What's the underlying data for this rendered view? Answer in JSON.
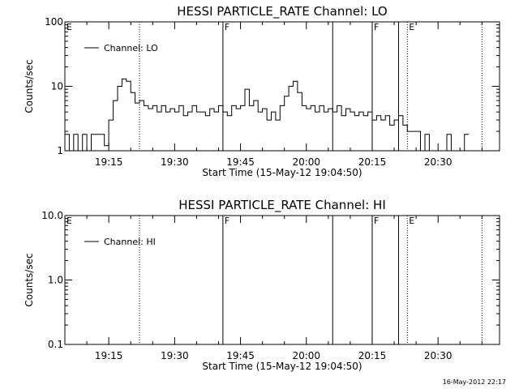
{
  "chart_data": [
    {
      "type": "line",
      "title": "HESSI PARTICLE_RATE Channel: LO",
      "xlabel": "Start Time (15-May-12 19:04:50)",
      "ylabel": "Counts/sec",
      "yscale": "log",
      "ylim": [
        1,
        100
      ],
      "yticks": [
        {
          "value": 1,
          "label": "1"
        },
        {
          "value": 10,
          "label": "10"
        },
        {
          "value": 100,
          "label": "100"
        }
      ],
      "xlim": [
        "19:05",
        "20:44"
      ],
      "xticks": [
        "19:15",
        "19:30",
        "19:45",
        "20:00",
        "20:15",
        "20:30"
      ],
      "legend": {
        "position": "top-left",
        "entries": [
          "Channel: LO"
        ]
      },
      "markers": [
        {
          "time": "19:05",
          "label": "E",
          "style": "solid"
        },
        {
          "time": "19:22",
          "label": "",
          "style": "dotted"
        },
        {
          "time": "19:41",
          "label": "F",
          "style": "solid"
        },
        {
          "time": "20:06",
          "label": "",
          "style": "solid"
        },
        {
          "time": "20:15",
          "label": "F",
          "style": "solid"
        },
        {
          "time": "20:21",
          "label": "",
          "style": "solid"
        },
        {
          "time": "20:23",
          "label": "E",
          "style": "dotted"
        },
        {
          "time": "20:40",
          "label": "",
          "style": "dotted"
        }
      ],
      "series": [
        {
          "name": "Channel: LO",
          "x": [
            "19:05",
            "19:06",
            "19:07",
            "19:08",
            "19:09",
            "19:10",
            "19:11",
            "19:12",
            "19:13",
            "19:14",
            "19:15",
            "19:16",
            "19:17",
            "19:18",
            "19:19",
            "19:20",
            "19:21",
            "19:22",
            "19:23",
            "19:24",
            "19:25",
            "19:26",
            "19:27",
            "19:28",
            "19:29",
            "19:30",
            "19:31",
            "19:32",
            "19:33",
            "19:34",
            "19:35",
            "19:36",
            "19:37",
            "19:38",
            "19:39",
            "19:40",
            "19:41",
            "19:42",
            "19:43",
            "19:44",
            "19:45",
            "19:46",
            "19:47",
            "19:48",
            "19:49",
            "19:50",
            "19:51",
            "19:52",
            "19:53",
            "19:54",
            "19:55",
            "19:56",
            "19:57",
            "19:58",
            "19:59",
            "20:00",
            "20:01",
            "20:02",
            "20:03",
            "20:04",
            "20:05",
            "20:06",
            "20:07",
            "20:08",
            "20:09",
            "20:10",
            "20:11",
            "20:12",
            "20:13",
            "20:14",
            "20:15",
            "20:16",
            "20:17",
            "20:18",
            "20:19",
            "20:20",
            "20:21",
            "20:22",
            "20:23",
            "20:24",
            "20:25",
            "20:26",
            "20:27",
            "20:28",
            "20:29",
            "20:30",
            "20:31",
            "20:32",
            "20:33",
            "20:34",
            "20:35",
            "20:36"
          ],
          "values": [
            1.8,
            1,
            1.8,
            1,
            1.8,
            1,
            1.8,
            1.8,
            1.8,
            1.2,
            3,
            6,
            10,
            13,
            12,
            8,
            5.5,
            6,
            5,
            4.5,
            5,
            4,
            5,
            4,
            4.5,
            4,
            5,
            3.5,
            4,
            5,
            4,
            4,
            3.5,
            4.5,
            4,
            5,
            4,
            3.5,
            5,
            4.5,
            5,
            9,
            5,
            6,
            4,
            4.5,
            3,
            4,
            3,
            5,
            7,
            10,
            12,
            8,
            5,
            4.5,
            5,
            4,
            5,
            4,
            4.5,
            4,
            5,
            3.5,
            4.5,
            4,
            3.5,
            4,
            3.5,
            4,
            3,
            3.5,
            3,
            3.5,
            2.5,
            3,
            3.5,
            2.5,
            2,
            2,
            2,
            1,
            1.8,
            1,
            1,
            1,
            1,
            1.8,
            1,
            1,
            1,
            1.8
          ]
        }
      ]
    },
    {
      "type": "line",
      "title": "HESSI PARTICLE_RATE Channel: HI",
      "xlabel": "Start Time (15-May-12 19:04:50)",
      "ylabel": "Counts/sec",
      "yscale": "log",
      "ylim": [
        0.1,
        10
      ],
      "yticks": [
        {
          "value": 0.1,
          "label": "0.1"
        },
        {
          "value": 1,
          "label": "1.0"
        },
        {
          "value": 10,
          "label": "10.0"
        }
      ],
      "xlim": [
        "19:05",
        "20:44"
      ],
      "xticks": [
        "19:15",
        "19:30",
        "19:45",
        "20:00",
        "20:15",
        "20:30"
      ],
      "legend": {
        "position": "top-left",
        "entries": [
          "Channel: HI"
        ]
      },
      "markers": [
        {
          "time": "19:05",
          "label": "E",
          "style": "solid"
        },
        {
          "time": "19:22",
          "label": "",
          "style": "dotted"
        },
        {
          "time": "19:41",
          "label": "F",
          "style": "solid"
        },
        {
          "time": "20:06",
          "label": "",
          "style": "solid"
        },
        {
          "time": "20:15",
          "label": "F",
          "style": "solid"
        },
        {
          "time": "20:21",
          "label": "",
          "style": "solid"
        },
        {
          "time": "20:23",
          "label": "E",
          "style": "dotted"
        },
        {
          "time": "20:40",
          "label": "",
          "style": "dotted"
        }
      ],
      "series": [
        {
          "name": "Channel: HI",
          "x": [],
          "values": []
        }
      ]
    }
  ],
  "footer": {
    "timestamp": "16-May-2012 22:17"
  }
}
